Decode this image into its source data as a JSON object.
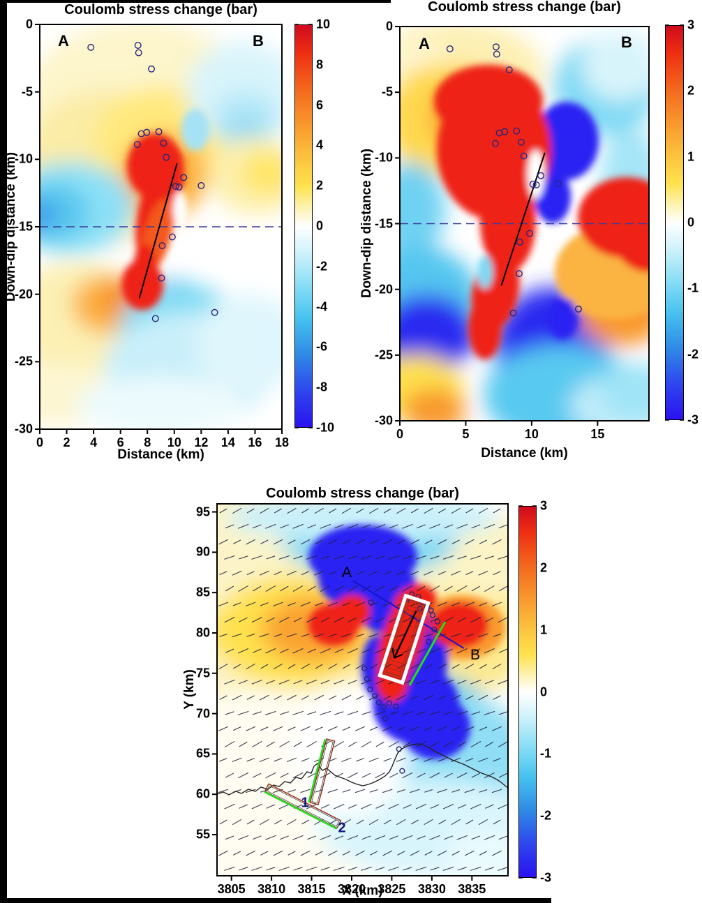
{
  "colors": {
    "positive_red": "#ee2113",
    "negative_blue": "#2a1af0",
    "cyan": "#55c8f0",
    "orange": "#f8912b",
    "yellow": "#ffe24e",
    "aftershock_outline": "#26267f",
    "dashed_depth_line": "#3b3b9e",
    "profile_line_blue": "#1515c8",
    "green_fault_line": "#1ee01e",
    "fault_rect_outline": "#8b2a12",
    "fault_number_navy": "#151580"
  },
  "chart_data": [
    {
      "id": "cross-section-left",
      "type": "heatmap",
      "title": "Coulomb stress change (bar)",
      "xlabel": "Distance (km)",
      "ylabel": "Down-dip distance (km)",
      "xlim": [
        0,
        18
      ],
      "ylim": [
        -30,
        0
      ],
      "xticks": [
        0,
        2,
        4,
        6,
        8,
        10,
        12,
        14,
        16,
        18
      ],
      "yticks": [
        0,
        -5,
        -10,
        -15,
        -20,
        -25,
        -30
      ],
      "colorbar": {
        "min": -10,
        "max": 10,
        "ticks": [
          10,
          8,
          6,
          4,
          2,
          0,
          -2,
          -4,
          -6,
          -8,
          -10
        ]
      },
      "endpoint_labels": {
        "A": "A",
        "B": "B"
      },
      "fault_line": [
        [
          10.2,
          -10.3
        ],
        [
          7.4,
          -20.3
        ]
      ],
      "dashed_depth_km": -15,
      "aftershocks": [
        [
          3.8,
          -1.7
        ],
        [
          7.3,
          -1.55
        ],
        [
          7.35,
          -2.1
        ],
        [
          8.3,
          -3.3
        ],
        [
          7.55,
          -8.1
        ],
        [
          7.95,
          -8.0
        ],
        [
          8.85,
          -7.95
        ],
        [
          7.25,
          -8.9
        ],
        [
          9.2,
          -8.8
        ],
        [
          9.4,
          -9.85
        ],
        [
          10.7,
          -11.35
        ],
        [
          10.1,
          -12.0
        ],
        [
          10.35,
          -12.05
        ],
        [
          12.0,
          -11.95
        ],
        [
          9.85,
          -15.75
        ],
        [
          9.1,
          -16.4
        ],
        [
          9.05,
          -18.8
        ],
        [
          8.6,
          -21.8
        ],
        [
          13.0,
          -21.35
        ]
      ]
    },
    {
      "id": "cross-section-right",
      "type": "heatmap",
      "title": "Coulomb stress change (bar)",
      "xlabel": "Distance (km)",
      "ylabel": "Down-dip distance (km)",
      "xlim": [
        0,
        18.9
      ],
      "ylim": [
        -30,
        0
      ],
      "xticks": [
        0,
        5,
        10,
        15
      ],
      "yticks": [
        0,
        -5,
        -10,
        -15,
        -20,
        -25,
        -30
      ],
      "colorbar": {
        "min": -3,
        "max": 3,
        "ticks": [
          3,
          2,
          1,
          0,
          -1,
          -2,
          -3
        ]
      },
      "endpoint_labels": {
        "A": "A",
        "B": "B"
      },
      "fault_line": [
        [
          11.0,
          -9.6
        ],
        [
          7.7,
          -19.7
        ]
      ],
      "dashed_depth_km": -15,
      "aftershocks": [
        [
          3.8,
          -1.7
        ],
        [
          7.3,
          -1.55
        ],
        [
          7.35,
          -2.1
        ],
        [
          8.3,
          -3.3
        ],
        [
          7.55,
          -8.1
        ],
        [
          7.95,
          -8.0
        ],
        [
          8.85,
          -7.95
        ],
        [
          7.25,
          -8.9
        ],
        [
          9.2,
          -8.8
        ],
        [
          9.4,
          -9.85
        ],
        [
          10.7,
          -11.35
        ],
        [
          10.1,
          -12.0
        ],
        [
          10.35,
          -12.05
        ],
        [
          12.0,
          -11.95
        ],
        [
          9.85,
          -15.75
        ],
        [
          9.1,
          -16.4
        ],
        [
          9.05,
          -18.8
        ],
        [
          8.6,
          -21.8
        ],
        [
          13.55,
          -21.5
        ]
      ]
    },
    {
      "id": "map-view",
      "type": "heatmap",
      "title": "Coulomb stress change (bar)",
      "xlabel": "X (km)",
      "ylabel": "Y (km)",
      "xlim": [
        3803.2,
        3839.5
      ],
      "ylim": [
        49.9,
        96.0
      ],
      "xticks": [
        3805,
        3810,
        3815,
        3820,
        3825,
        3830,
        3835
      ],
      "yticks": [
        95,
        90,
        85,
        80,
        75,
        70,
        65,
        60,
        55
      ],
      "colorbar": {
        "min": -3,
        "max": 3,
        "ticks": [
          3,
          2,
          1,
          0,
          -1,
          -2,
          -3
        ]
      },
      "profile_line": {
        "from": [
          3820.1,
          86.5
        ],
        "to": [
          3834.0,
          78.1
        ],
        "label_a": "A",
        "label_b": "B"
      },
      "fault_trace_labels": [
        "1",
        "2"
      ],
      "stress_orientation_deg": -24,
      "aftershocks": [
        [
          3827.5,
          84.8
        ],
        [
          3828.3,
          84.5
        ],
        [
          3826.9,
          84.2
        ],
        [
          3828.8,
          83.8
        ],
        [
          3829.4,
          83.3
        ],
        [
          3829.9,
          82.8
        ],
        [
          3828.5,
          83.0
        ],
        [
          3830.1,
          82.2
        ],
        [
          3830.7,
          81.4
        ],
        [
          3822.4,
          83.8
        ],
        [
          3821.6,
          75.6
        ],
        [
          3821.9,
          74.3
        ],
        [
          3822.3,
          73.0
        ],
        [
          3822.9,
          72.2
        ],
        [
          3823.4,
          71.4
        ],
        [
          3824.0,
          70.8
        ],
        [
          3824.7,
          71.3
        ],
        [
          3825.5,
          70.9
        ],
        [
          3824.2,
          69.4
        ],
        [
          3825.9,
          65.6
        ],
        [
          3826.3,
          62.9
        ],
        [
          3829.6,
          78.9
        ],
        [
          3830.3,
          80.4
        ]
      ]
    }
  ]
}
